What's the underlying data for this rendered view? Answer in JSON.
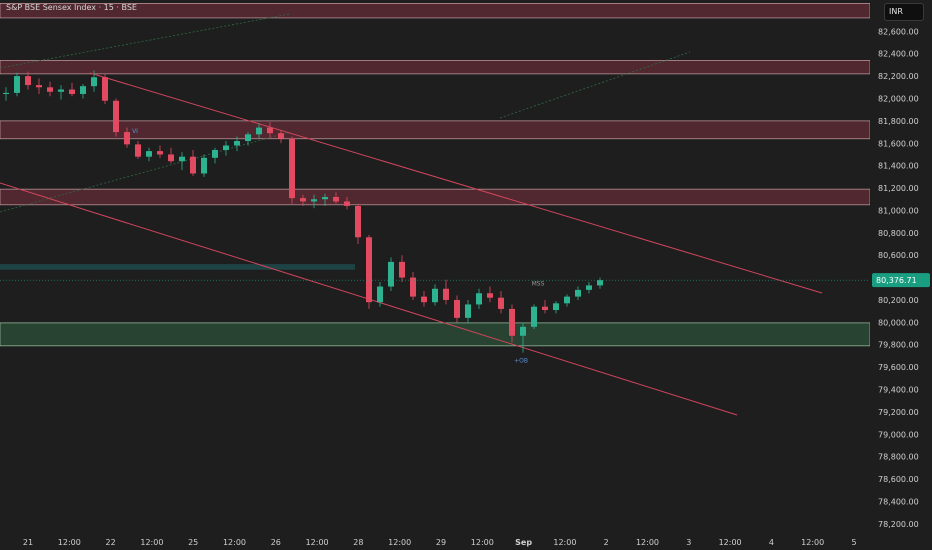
{
  "header": {
    "title": "S&P BSE Sensex Index · 15 · BSE",
    "currency": "INR"
  },
  "colors": {
    "background": "#1e1e1e",
    "zone_red": "#5a2a32",
    "zone_green": "#2c4a37",
    "zone_teal": "#1f4a4c",
    "channel": "#d0455c",
    "candle_up": "#2db38f",
    "candle_down": "#e24a62",
    "price_badge": "#1a9e82"
  },
  "chart_data": {
    "type": "candlestick",
    "y_ticks": [
      "82,600.00",
      "82,400.00",
      "82,200.00",
      "82,000.00",
      "81,800.00",
      "81,600.00",
      "81,400.00",
      "81,200.00",
      "81,000.00",
      "80,800.00",
      "80,600.00",
      "80,200.00",
      "80,000.00",
      "79,800.00",
      "79,600.00",
      "79,400.00",
      "79,200.00",
      "79,000.00",
      "78,800.00",
      "78,600.00",
      "78,400.00",
      "78,200.00"
    ],
    "y_range": [
      78100,
      82880
    ],
    "x_ticks": [
      "21",
      "12:00",
      "22",
      "12:00",
      "25",
      "12:00",
      "26",
      "12:00",
      "28",
      "12:00",
      "29",
      "12:00",
      "Sep",
      "12:00",
      "2",
      "12:00",
      "3",
      "12:00",
      "4",
      "12:00",
      "5"
    ],
    "last_price": "80,376.71",
    "zones": [
      {
        "type": "supply",
        "from": 82720,
        "to": 82850
      },
      {
        "type": "supply",
        "from": 82220,
        "to": 82340
      },
      {
        "type": "supply",
        "from": 81640,
        "to": 81800
      },
      {
        "type": "supply",
        "from": 81050,
        "to": 81190
      },
      {
        "type": "demand",
        "from": 79790,
        "to": 79995
      },
      {
        "type": "fvg",
        "from": 80470,
        "to": 80520
      }
    ],
    "annotations": [
      "VI",
      "MSS",
      "+OB"
    ],
    "series": [
      {
        "points": [
          [
            82040,
            82100,
            81980,
            82050
          ],
          [
            82050,
            82230,
            82020,
            82200
          ],
          [
            82200,
            82240,
            82080,
            82120
          ],
          [
            82120,
            82180,
            82040,
            82100
          ],
          [
            82100,
            82150,
            82020,
            82060
          ],
          [
            82060,
            82120,
            81990,
            82080
          ],
          [
            82080,
            82140,
            82020,
            82040
          ],
          [
            82040,
            82130,
            82000,
            82110
          ],
          [
            82110,
            82250,
            82060,
            82190
          ],
          [
            82190,
            82220,
            81950,
            81980
          ],
          [
            81980,
            82000,
            81660,
            81700
          ],
          [
            81700,
            81740,
            81560,
            81590
          ],
          [
            81590,
            81620,
            81460,
            81480
          ],
          [
            81480,
            81560,
            81440,
            81530
          ],
          [
            81530,
            81580,
            81470,
            81500
          ],
          [
            81500,
            81560,
            81420,
            81440
          ],
          [
            81440,
            81520,
            81360,
            81480
          ],
          [
            81480,
            81540,
            81310,
            81330
          ],
          [
            81330,
            81500,
            81300,
            81470
          ],
          [
            81470,
            81560,
            81420,
            81540
          ],
          [
            81540,
            81620,
            81490,
            81580
          ],
          [
            81580,
            81660,
            81530,
            81620
          ],
          [
            81620,
            81700,
            81580,
            81680
          ],
          [
            81680,
            81780,
            81640,
            81740
          ],
          [
            81740,
            81790,
            81650,
            81690
          ],
          [
            81690,
            81720,
            81600,
            81640
          ],
          [
            81640,
            81660,
            81060,
            81110
          ],
          [
            81110,
            81140,
            81040,
            81080
          ],
          [
            81080,
            81140,
            81020,
            81100
          ],
          [
            81100,
            81150,
            81040,
            81120
          ],
          [
            81120,
            81160,
            81060,
            81080
          ],
          [
            81080,
            81120,
            81010,
            81040
          ],
          [
            81040,
            81060,
            80700,
            80760
          ],
          [
            80760,
            80780,
            80120,
            80180
          ],
          [
            80180,
            80360,
            80140,
            80320
          ],
          [
            80320,
            80580,
            80280,
            80540
          ],
          [
            80540,
            80600,
            80360,
            80400
          ],
          [
            80400,
            80450,
            80200,
            80230
          ],
          [
            80230,
            80280,
            80140,
            80180
          ],
          [
            80180,
            80340,
            80150,
            80300
          ],
          [
            80300,
            80380,
            80160,
            80200
          ],
          [
            80200,
            80240,
            80000,
            80040
          ],
          [
            80040,
            80200,
            79990,
            80160
          ],
          [
            80160,
            80300,
            80120,
            80260
          ],
          [
            80260,
            80320,
            80180,
            80220
          ],
          [
            80220,
            80280,
            80080,
            80120
          ],
          [
            80120,
            80160,
            79820,
            79880
          ],
          [
            79880,
            80000,
            79730,
            79960
          ],
          [
            79960,
            80160,
            79940,
            80140
          ],
          [
            80140,
            80200,
            80080,
            80110
          ],
          [
            80110,
            80190,
            80080,
            80170
          ],
          [
            80170,
            80250,
            80140,
            80230
          ],
          [
            80230,
            80320,
            80200,
            80290
          ],
          [
            80290,
            80360,
            80260,
            80330
          ],
          [
            80330,
            80400,
            80300,
            80376.71
          ]
        ]
      }
    ]
  }
}
